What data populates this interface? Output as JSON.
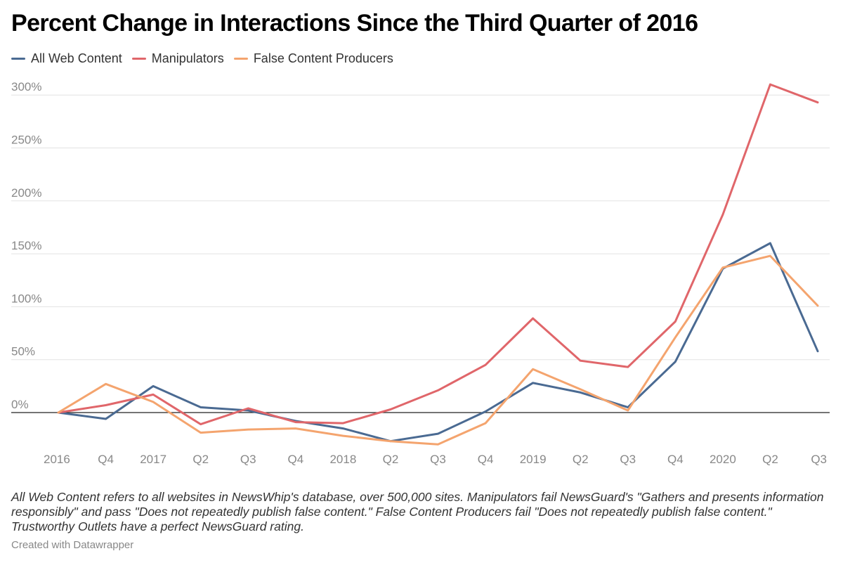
{
  "title": "Percent Change in Interactions Since the Third Quarter of 2016",
  "footnote": "All Web Content refers to all websites in NewsWhip's database, over 500,000 sites. Manipulators fail NewsGuard's \"Gathers and presents information responsibly\" and pass \"Does not repeatedly publish false content.\" False Content Producers fail \"Does not repeatedly publish false content.\" Trustworthy Outlets have a perfect NewsGuard rating.",
  "credit": "Created with Datawrapper",
  "chart_data": {
    "type": "line",
    "title": "Percent Change in Interactions Since the Third Quarter of 2016",
    "xlabel": "",
    "ylabel": "",
    "categories": [
      "2016",
      "Q4",
      "2017",
      "Q2",
      "Q3",
      "Q4",
      "2018",
      "Q2",
      "Q3",
      "Q4",
      "2019",
      "Q2",
      "Q3",
      "Q4",
      "2020",
      "Q2",
      "Q3"
    ],
    "ylim": [
      -30,
      310
    ],
    "yticks": [
      0,
      50,
      100,
      150,
      200,
      250,
      300
    ],
    "ytick_labels": [
      "0%",
      "50%",
      "100%",
      "150%",
      "200%",
      "250%",
      "300%"
    ],
    "grid": true,
    "legend_position": "top-left",
    "series": [
      {
        "name": "All Web Content",
        "color": "#4a6a92",
        "values": [
          0,
          -6,
          25,
          5,
          2,
          -8,
          -15,
          -27,
          -20,
          1,
          28,
          19,
          5,
          48,
          136,
          160,
          58
        ]
      },
      {
        "name": "Manipulators",
        "color": "#e0666a",
        "values": [
          0,
          7,
          17,
          -11,
          4,
          -9,
          -10,
          3,
          21,
          45,
          89,
          49,
          43,
          86,
          187,
          310,
          293
        ]
      },
      {
        "name": "False Content Producers",
        "color": "#f4a46e",
        "values": [
          0,
          27,
          10,
          -19,
          -16,
          -15,
          -22,
          -27,
          -30,
          -10,
          41,
          22,
          2,
          71,
          137,
          148,
          101
        ]
      }
    ]
  }
}
